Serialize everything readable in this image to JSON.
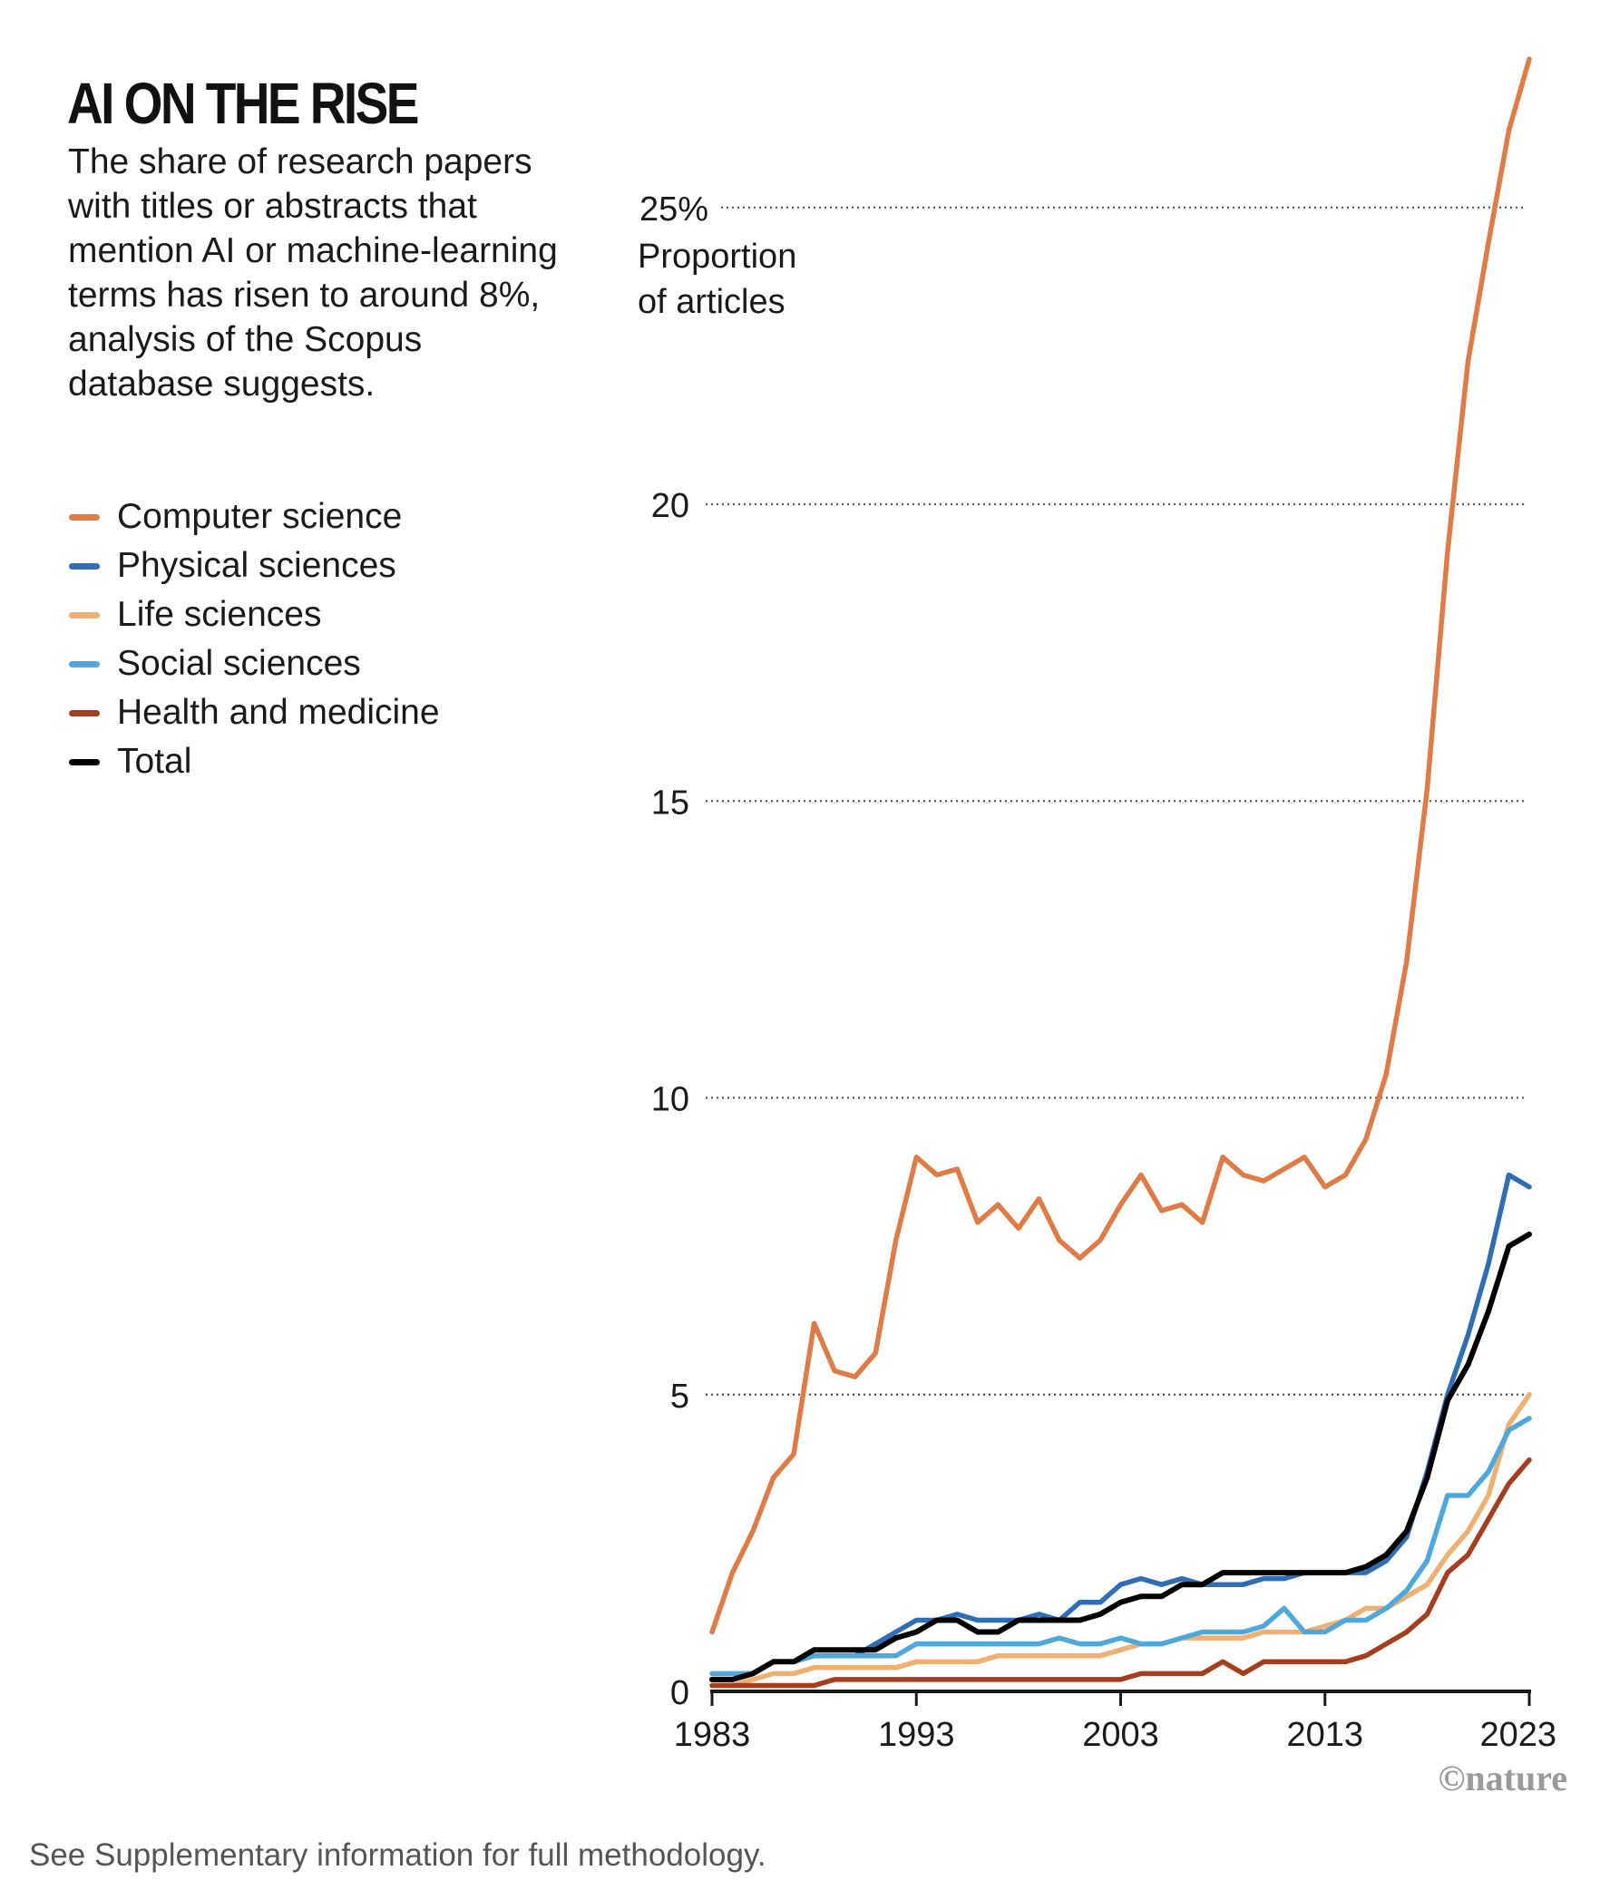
{
  "header": {
    "title": "AI ON THE RISE",
    "subtitle": "The share of research papers with titles or abstracts that mention AI or machine-learning terms has risen to around 8%, analysis of the Scopus database suggests."
  },
  "footnote": "See Supplementary information for full methodology.",
  "credit": "©nature",
  "chart_data": {
    "type": "line",
    "title": "AI ON THE RISE",
    "ylabel": "Proportion of articles",
    "ylabel_lines": [
      "Proportion",
      "of articles"
    ],
    "x": [
      1983,
      1984,
      1985,
      1986,
      1987,
      1988,
      1989,
      1990,
      1991,
      1992,
      1993,
      1994,
      1995,
      1996,
      1997,
      1998,
      1999,
      2000,
      2001,
      2002,
      2003,
      2004,
      2005,
      2006,
      2007,
      2008,
      2009,
      2010,
      2011,
      2012,
      2013,
      2014,
      2015,
      2016,
      2017,
      2018,
      2019,
      2020,
      2021,
      2022,
      2023
    ],
    "xlim": [
      1983,
      2023
    ],
    "ylim": [
      0,
      28
    ],
    "x_ticks": [
      1983,
      1993,
      2003,
      2013,
      2023
    ],
    "x_tick_labels": [
      "1983",
      "1993",
      "2003",
      "2013",
      "2023"
    ],
    "y_ticks": [
      0,
      5,
      10,
      15,
      20,
      25
    ],
    "y_tick_labels": [
      "0",
      "5",
      "10",
      "15",
      "20",
      "25%"
    ],
    "grid": "horizontal dotted",
    "legend_position": "top-left",
    "series": [
      {
        "name": "Computer science",
        "color": "#e07b45",
        "values": [
          1.0,
          2.0,
          2.7,
          3.6,
          4.0,
          6.2,
          5.4,
          5.3,
          5.7,
          7.6,
          9.0,
          8.7,
          8.8,
          7.9,
          8.2,
          7.8,
          8.3,
          7.6,
          7.3,
          7.6,
          8.2,
          8.7,
          8.1,
          8.2,
          7.9,
          9.0,
          8.7,
          8.6,
          8.8,
          9.0,
          8.5,
          8.7,
          9.3,
          10.4,
          12.3,
          15.2,
          19.2,
          22.4,
          24.4,
          26.3,
          27.5
        ]
      },
      {
        "name": "Physical sciences",
        "color": "#2f6db5",
        "values": [
          0.2,
          0.2,
          0.3,
          0.5,
          0.5,
          0.6,
          0.6,
          0.6,
          0.8,
          1.0,
          1.2,
          1.2,
          1.3,
          1.2,
          1.2,
          1.2,
          1.3,
          1.2,
          1.5,
          1.5,
          1.8,
          1.9,
          1.8,
          1.9,
          1.8,
          1.8,
          1.8,
          1.9,
          1.9,
          2.0,
          2.0,
          2.0,
          2.0,
          2.2,
          2.6,
          3.7,
          5.0,
          6.0,
          7.2,
          8.7,
          8.5
        ]
      },
      {
        "name": "Life sciences",
        "color": "#f0b070",
        "values": [
          0.1,
          0.1,
          0.2,
          0.3,
          0.3,
          0.4,
          0.4,
          0.4,
          0.4,
          0.4,
          0.5,
          0.5,
          0.5,
          0.5,
          0.6,
          0.6,
          0.6,
          0.6,
          0.6,
          0.6,
          0.7,
          0.8,
          0.8,
          0.9,
          0.9,
          0.9,
          0.9,
          1.0,
          1.0,
          1.0,
          1.1,
          1.2,
          1.4,
          1.4,
          1.6,
          1.8,
          2.3,
          2.7,
          3.3,
          4.5,
          5.0
        ]
      },
      {
        "name": "Social sciences",
        "color": "#4ea8dc",
        "values": [
          0.3,
          0.3,
          0.3,
          0.5,
          0.5,
          0.6,
          0.6,
          0.6,
          0.6,
          0.6,
          0.8,
          0.8,
          0.8,
          0.8,
          0.8,
          0.8,
          0.8,
          0.9,
          0.8,
          0.8,
          0.9,
          0.8,
          0.8,
          0.9,
          1.0,
          1.0,
          1.0,
          1.1,
          1.4,
          1.0,
          1.0,
          1.2,
          1.2,
          1.4,
          1.7,
          2.2,
          3.3,
          3.3,
          3.7,
          4.4,
          4.6
        ]
      },
      {
        "name": "Health and medicine",
        "color": "#a63d1e",
        "values": [
          0.1,
          0.1,
          0.1,
          0.1,
          0.1,
          0.1,
          0.2,
          0.2,
          0.2,
          0.2,
          0.2,
          0.2,
          0.2,
          0.2,
          0.2,
          0.2,
          0.2,
          0.2,
          0.2,
          0.2,
          0.2,
          0.3,
          0.3,
          0.3,
          0.3,
          0.5,
          0.3,
          0.5,
          0.5,
          0.5,
          0.5,
          0.5,
          0.6,
          0.8,
          1.0,
          1.3,
          2.0,
          2.3,
          2.9,
          3.5,
          3.9
        ]
      },
      {
        "name": "Total",
        "color": "#000000",
        "values": [
          0.2,
          0.2,
          0.3,
          0.5,
          0.5,
          0.7,
          0.7,
          0.7,
          0.7,
          0.9,
          1.0,
          1.2,
          1.2,
          1.0,
          1.0,
          1.2,
          1.2,
          1.2,
          1.2,
          1.3,
          1.5,
          1.6,
          1.6,
          1.8,
          1.8,
          2.0,
          2.0,
          2.0,
          2.0,
          2.0,
          2.0,
          2.0,
          2.1,
          2.3,
          2.7,
          3.6,
          4.9,
          5.5,
          6.4,
          7.5,
          7.7
        ]
      }
    ]
  }
}
